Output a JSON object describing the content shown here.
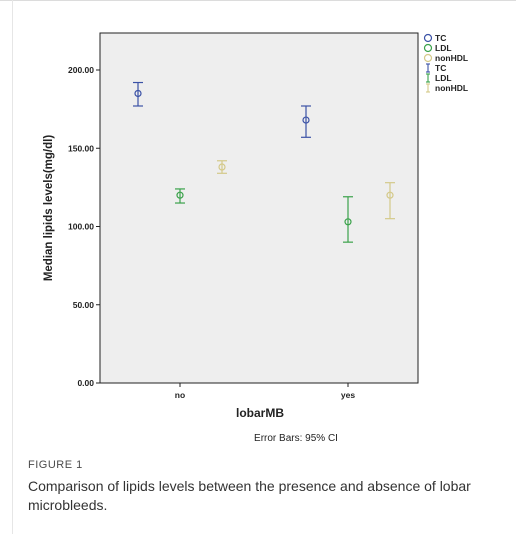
{
  "chart_data": {
    "type": "scatter",
    "title": "",
    "xlabel": "lobarMB",
    "ylabel": "Median lipids levels(mg/dl)",
    "categories": [
      "no",
      "yes"
    ],
    "ylim": [
      0,
      220
    ],
    "yticks": [
      "0.00",
      "50.00",
      "100.00",
      "150.00",
      "200.00"
    ],
    "grid": false,
    "legend_position": "top-right",
    "note": "Error Bars: 95% CI",
    "legend_markers": [
      {
        "name": "TC",
        "color": "#3b52a6"
      },
      {
        "name": "LDL",
        "color": "#3aa24a"
      },
      {
        "name": "nonHDL",
        "color": "#d4c989"
      }
    ],
    "legend_errorbars": [
      {
        "name": "TC",
        "color": "#3b52a6"
      },
      {
        "name": "LDL",
        "color": "#3aa24a"
      },
      {
        "name": "nonHDL",
        "color": "#d4c989"
      }
    ],
    "series": [
      {
        "name": "TC",
        "color": "#3b52a6",
        "values": [
          185,
          168
        ],
        "ci_low": [
          177,
          157
        ],
        "ci_high": [
          192,
          177
        ]
      },
      {
        "name": "LDL",
        "color": "#3aa24a",
        "values": [
          120,
          103
        ],
        "ci_low": [
          115,
          90
        ],
        "ci_high": [
          124,
          119
        ]
      },
      {
        "name": "nonHDL",
        "color": "#d4c989",
        "values": [
          138,
          120
        ],
        "ci_low": [
          134,
          105
        ],
        "ci_high": [
          142,
          128
        ]
      }
    ]
  },
  "caption": {
    "label": "FIGURE 1",
    "text": "Comparison of lipids levels between the presence and absence of lobar microbleeds."
  }
}
